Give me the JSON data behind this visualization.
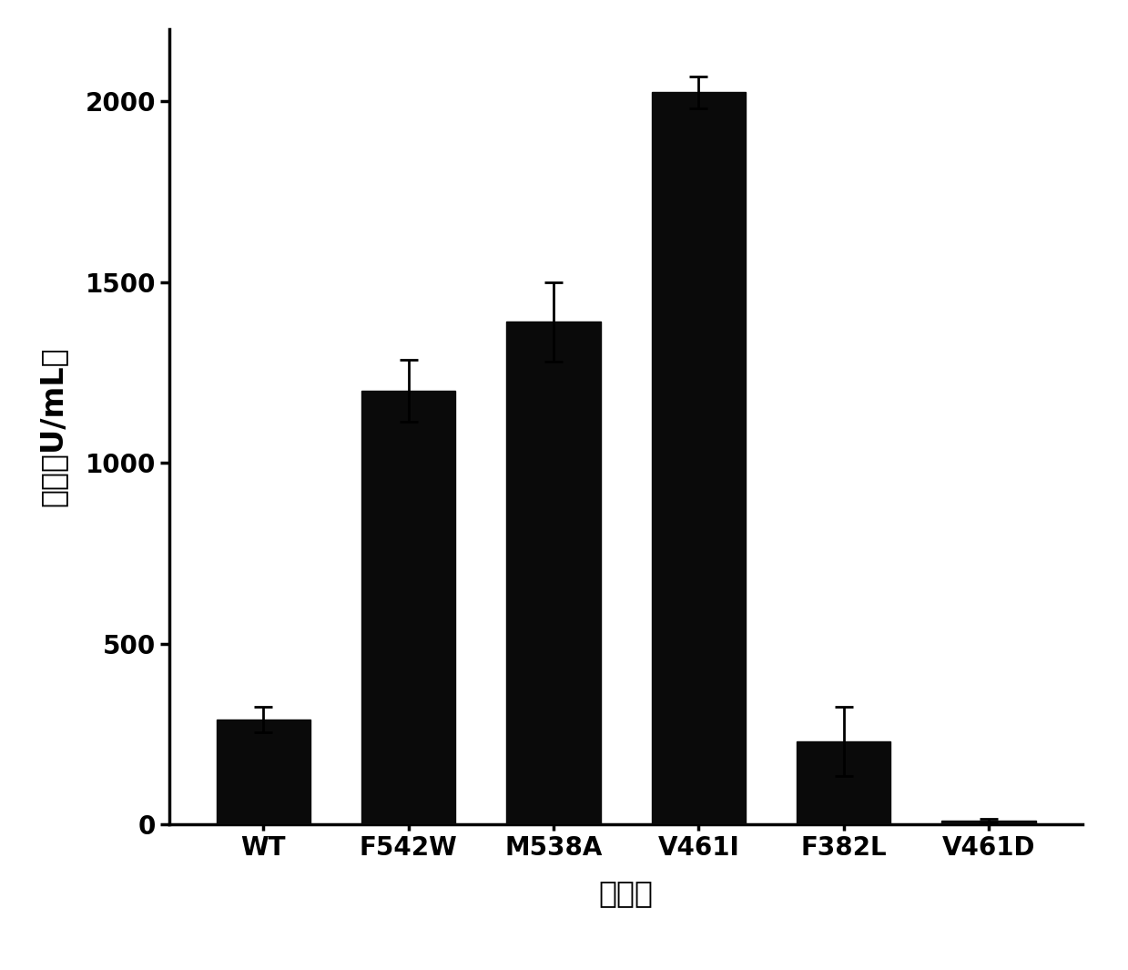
{
  "categories": [
    "WT",
    "F542W",
    "M538A",
    "V461I",
    "F382L",
    "V461D"
  ],
  "values": [
    290,
    1200,
    1390,
    2025,
    230,
    10
  ],
  "errors": [
    35,
    85,
    110,
    45,
    95,
    5
  ],
  "bar_color": "#0a0a0a",
  "background_color": "#ffffff",
  "ylabel": "酶活（U/mL）",
  "xlabel": "突变体",
  "ylim": [
    0,
    2200
  ],
  "yticks": [
    0,
    500,
    1000,
    1500,
    2000
  ],
  "label_fontsize": 24,
  "tick_fontsize": 20,
  "bar_width": 0.65
}
